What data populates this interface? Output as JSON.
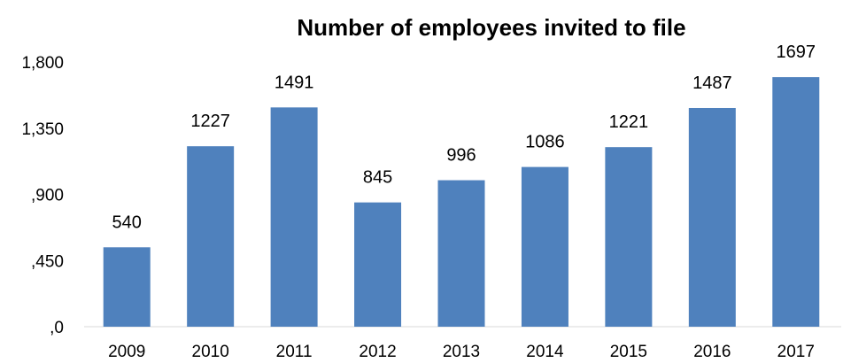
{
  "chart_data": {
    "type": "bar",
    "title": "Number of employees invited to file",
    "categories": [
      "2009",
      "2010",
      "2011",
      "2012",
      "2013",
      "2014",
      "2015",
      "2016",
      "2017"
    ],
    "values": [
      540,
      1227,
      1491,
      845,
      996,
      1086,
      1221,
      1487,
      1697
    ],
    "value_labels": [
      "540",
      "1227",
      "1491",
      "845",
      "996",
      "1086",
      "1221",
      "1487",
      "1697"
    ],
    "y_ticks": [
      0,
      450,
      900,
      1350,
      1800
    ],
    "y_tick_labels": [
      ",0",
      ",450",
      ",900",
      "1,350",
      "1,800"
    ],
    "ylim": [
      0,
      1800
    ],
    "bar_color": "#4f81bd",
    "grid": false,
    "legend": "none"
  }
}
